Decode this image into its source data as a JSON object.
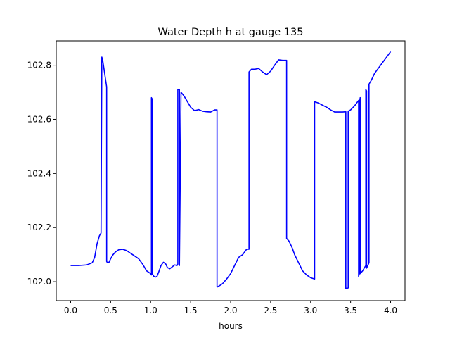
{
  "chart_data": {
    "type": "line",
    "title": "Water Depth h at gauge 135",
    "xlabel": "hours",
    "ylabel": "",
    "xlim": [
      -0.18,
      4.18
    ],
    "ylim": [
      101.93,
      102.89
    ],
    "x_ticks": [
      0.0,
      0.5,
      1.0,
      1.5,
      2.0,
      2.5,
      3.0,
      3.5,
      4.0
    ],
    "x_tick_labels": [
      "0.0",
      "0.5",
      "1.0",
      "1.5",
      "2.0",
      "2.5",
      "3.0",
      "3.5",
      "4.0"
    ],
    "y_ticks": [
      102.0,
      102.2,
      102.4,
      102.6,
      102.8
    ],
    "y_tick_labels": [
      "102.0",
      "102.2",
      "102.4",
      "102.6",
      "102.8"
    ],
    "grid": false,
    "series_color": "#0000ff",
    "series": [
      {
        "x": [
          0.0,
          0.1,
          0.2,
          0.27,
          0.3,
          0.33,
          0.36,
          0.38,
          0.39,
          0.4,
          0.42,
          0.45,
          0.45,
          0.46,
          0.48,
          0.5,
          0.53,
          0.56,
          0.6,
          0.65,
          0.7,
          0.75,
          0.8,
          0.85,
          0.9,
          0.95,
          1.0,
          1.01,
          1.01,
          1.02,
          1.02,
          1.04,
          1.06,
          1.08,
          1.1,
          1.13,
          1.16,
          1.19,
          1.21,
          1.24,
          1.27,
          1.3,
          1.33,
          1.34,
          1.34,
          1.36,
          1.36,
          1.38,
          1.42,
          1.46,
          1.5,
          1.55,
          1.6,
          1.65,
          1.7,
          1.75,
          1.8,
          1.83,
          1.83,
          1.86,
          1.9,
          1.95,
          2.0,
          2.05,
          2.1,
          2.15,
          2.2,
          2.23,
          2.23,
          2.26,
          2.3,
          2.35,
          2.4,
          2.45,
          2.5,
          2.55,
          2.6,
          2.65,
          2.7,
          2.7,
          2.73,
          2.77,
          2.8,
          2.85,
          2.9,
          2.95,
          3.0,
          3.05,
          3.05,
          3.1,
          3.15,
          3.2,
          3.25,
          3.3,
          3.35,
          3.4,
          3.44,
          3.44,
          3.47,
          3.47,
          3.5,
          3.55,
          3.6,
          3.6,
          3.61,
          3.61,
          3.62,
          3.62,
          3.65,
          3.69,
          3.69,
          3.7,
          3.7,
          3.73,
          3.73,
          3.76,
          3.8,
          3.85,
          3.9,
          3.95,
          4.0
        ],
        "y": [
          102.06,
          102.06,
          102.062,
          102.07,
          102.09,
          102.14,
          102.17,
          102.18,
          102.83,
          102.82,
          102.78,
          102.72,
          102.075,
          102.07,
          102.072,
          102.085,
          102.1,
          102.11,
          102.118,
          102.12,
          102.115,
          102.105,
          102.095,
          102.085,
          102.065,
          102.04,
          102.03,
          102.025,
          102.68,
          102.675,
          102.03,
          102.02,
          102.017,
          102.02,
          102.035,
          102.06,
          102.072,
          102.065,
          102.052,
          102.048,
          102.055,
          102.062,
          102.06,
          102.065,
          102.71,
          102.71,
          102.06,
          102.7,
          102.685,
          102.665,
          102.645,
          102.632,
          102.636,
          102.63,
          102.628,
          102.627,
          102.635,
          102.635,
          101.98,
          101.985,
          101.993,
          102.01,
          102.03,
          102.06,
          102.09,
          102.1,
          102.12,
          102.12,
          102.775,
          102.785,
          102.785,
          102.788,
          102.775,
          102.765,
          102.778,
          102.8,
          102.82,
          102.818,
          102.818,
          102.16,
          102.15,
          102.125,
          102.1,
          102.07,
          102.04,
          102.025,
          102.015,
          102.01,
          102.665,
          102.66,
          102.652,
          102.645,
          102.635,
          102.627,
          102.627,
          102.627,
          102.628,
          101.975,
          101.977,
          102.63,
          102.635,
          102.65,
          102.67,
          102.02,
          102.03,
          102.66,
          102.68,
          102.03,
          102.04,
          102.06,
          102.71,
          102.705,
          102.05,
          102.07,
          102.73,
          102.745,
          102.77,
          102.79,
          102.81,
          102.83,
          102.85
        ]
      }
    ]
  }
}
